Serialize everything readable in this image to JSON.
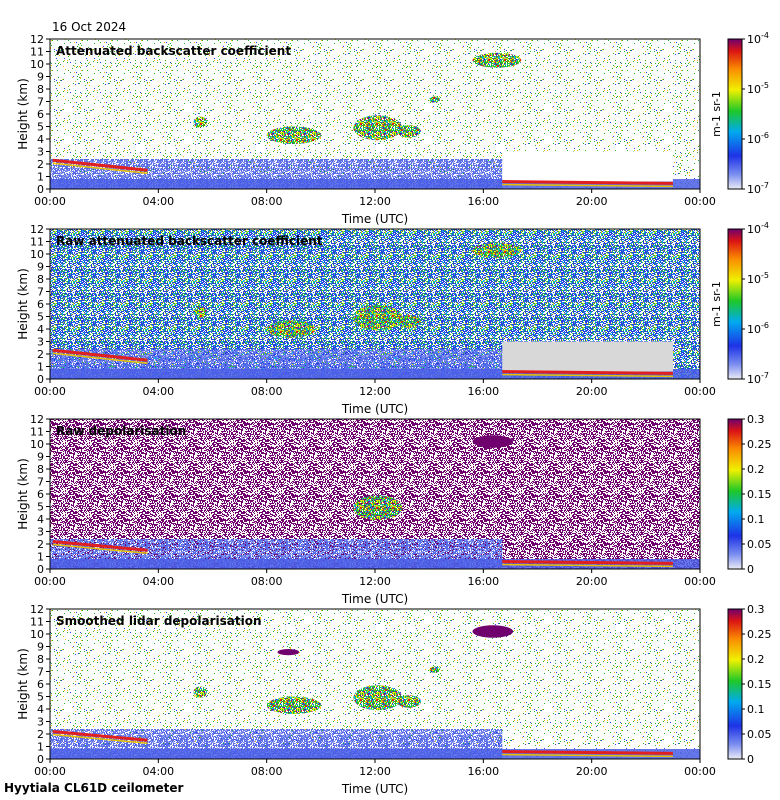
{
  "header": {
    "date": "16 Oct 2024"
  },
  "footer": {
    "site": "Hyytiala CL61D ceilometer"
  },
  "colors": {
    "purple": "#70006e",
    "white_bg": "#ffffff",
    "missing_gray": "#d8d8d8",
    "blue_low": "#2a3de8",
    "cloud_red": "#e02020",
    "aerosol_green": "#22c022"
  },
  "chart_data": [
    {
      "type": "heatmap",
      "title": "Attenuated backscatter coefficient",
      "xlabel": "Time (UTC)",
      "ylabel": "Height (km)",
      "x_ticks": [
        "00:00",
        "04:00",
        "08:00",
        "12:00",
        "16:00",
        "20:00",
        "00:00"
      ],
      "y_ticks": [
        "0",
        "1",
        "2",
        "3",
        "4",
        "5",
        "6",
        "7",
        "8",
        "9",
        "10",
        "11",
        "12"
      ],
      "xlim": [
        0,
        24
      ],
      "ylim": [
        0,
        12
      ],
      "colorbar": {
        "scale": "log",
        "ticks": [
          "10-7",
          "10-6",
          "10-5",
          "10-4"
        ],
        "exponents": [
          "-7",
          "-6",
          "-5",
          "-4"
        ],
        "unit": "m-1 sr-1"
      },
      "features": [
        {
          "kind": "missing",
          "x0": 16.7,
          "x1": 23.0,
          "y0": 0.6,
          "y1": 3.0
        },
        {
          "kind": "layer",
          "x0": 0.1,
          "x1": 3.6,
          "y_start": 2.3,
          "y_end": 1.5
        },
        {
          "kind": "layer",
          "x0": 16.7,
          "x1": 23.0,
          "y_start": 0.6,
          "y_end": 0.45
        },
        {
          "kind": "cloud",
          "x": 5.3,
          "y": 4.9,
          "w": 0.5,
          "h": 0.9
        },
        {
          "kind": "cloud",
          "x": 8.0,
          "y": 3.6,
          "w": 2.0,
          "h": 1.4
        },
        {
          "kind": "cloud",
          "x": 11.2,
          "y": 3.9,
          "w": 1.8,
          "h": 2.0
        },
        {
          "kind": "cloud",
          "x": 12.8,
          "y": 4.1,
          "w": 0.9,
          "h": 1.0
        },
        {
          "kind": "cloud",
          "x": 15.6,
          "y": 9.7,
          "w": 1.8,
          "h": 1.2
        },
        {
          "kind": "cloud",
          "x": 14.0,
          "y": 6.9,
          "w": 0.4,
          "h": 0.5
        }
      ]
    },
    {
      "type": "heatmap",
      "title": "Raw attenuated backscatter coefficient",
      "xlabel": "Time (UTC)",
      "ylabel": "Height (km)",
      "x_ticks": [
        "00:00",
        "04:00",
        "08:00",
        "12:00",
        "16:00",
        "20:00",
        "00:00"
      ],
      "y_ticks": [
        "0",
        "1",
        "2",
        "3",
        "4",
        "5",
        "6",
        "7",
        "8",
        "9",
        "10",
        "11",
        "12"
      ],
      "xlim": [
        0,
        24
      ],
      "ylim": [
        0,
        12
      ],
      "colorbar": {
        "scale": "log",
        "ticks": [
          "10-7",
          "10-6",
          "10-5",
          "10-4"
        ],
        "exponents": [
          "-7",
          "-6",
          "-5",
          "-4"
        ],
        "unit": "m-1 sr-1"
      },
      "features": [
        {
          "kind": "missing",
          "x0": 16.7,
          "x1": 23.0,
          "y0": 0.6,
          "y1": 3.0
        },
        {
          "kind": "layer",
          "x0": 0.1,
          "x1": 3.6,
          "y_start": 2.3,
          "y_end": 1.5
        },
        {
          "kind": "layer",
          "x0": 16.7,
          "x1": 23.0,
          "y_start": 0.6,
          "y_end": 0.45
        },
        {
          "kind": "cloud",
          "x": 5.3,
          "y": 4.9,
          "w": 0.5,
          "h": 0.9
        },
        {
          "kind": "cloud",
          "x": 8.0,
          "y": 3.3,
          "w": 1.8,
          "h": 1.4
        },
        {
          "kind": "cloud",
          "x": 11.2,
          "y": 3.9,
          "w": 1.8,
          "h": 2.0
        },
        {
          "kind": "cloud",
          "x": 12.8,
          "y": 4.1,
          "w": 0.9,
          "h": 1.0
        },
        {
          "kind": "cloud",
          "x": 15.6,
          "y": 9.7,
          "w": 1.8,
          "h": 1.2
        }
      ]
    },
    {
      "type": "heatmap",
      "title": "Raw depolarisation",
      "xlabel": "Time (UTC)",
      "ylabel": "Height (km)",
      "x_ticks": [
        "00:00",
        "04:00",
        "08:00",
        "12:00",
        "16:00",
        "20:00",
        "00:00"
      ],
      "y_ticks": [
        "0",
        "1",
        "2",
        "3",
        "4",
        "5",
        "6",
        "7",
        "8",
        "9",
        "10",
        "11",
        "12"
      ],
      "xlim": [
        0,
        24
      ],
      "ylim": [
        0,
        12
      ],
      "colorbar": {
        "scale": "linear",
        "ticks": [
          "0",
          "0.05",
          "0.1",
          "0.15",
          "0.2",
          "0.25",
          "0.3"
        ],
        "range": [
          0,
          0.3
        ]
      },
      "features": [
        {
          "kind": "layer",
          "x0": 0.1,
          "x1": 3.6,
          "y_start": 2.2,
          "y_end": 1.5
        },
        {
          "kind": "layer",
          "x0": 16.7,
          "x1": 23.0,
          "y_start": 0.6,
          "y_end": 0.45
        },
        {
          "kind": "cloud",
          "x": 11.2,
          "y": 3.9,
          "w": 1.8,
          "h": 2.0
        },
        {
          "kind": "cloud",
          "x": 15.6,
          "y": 9.7,
          "w": 1.5,
          "h": 1.0
        }
      ]
    },
    {
      "type": "heatmap",
      "title": "Smoothed lidar depolarisation",
      "xlabel": "Time (UTC)",
      "ylabel": "Height (km)",
      "x_ticks": [
        "00:00",
        "04:00",
        "08:00",
        "12:00",
        "16:00",
        "20:00",
        "00:00"
      ],
      "y_ticks": [
        "0",
        "1",
        "2",
        "3",
        "4",
        "5",
        "6",
        "7",
        "8",
        "9",
        "10",
        "11",
        "12"
      ],
      "xlim": [
        0,
        24
      ],
      "ylim": [
        0,
        12
      ],
      "colorbar": {
        "scale": "linear",
        "ticks": [
          "0",
          "0.05",
          "0.1",
          "0.15",
          "0.2",
          "0.25",
          "0.3"
        ],
        "range": [
          0,
          0.3
        ]
      },
      "features": [
        {
          "kind": "layer",
          "x0": 0.1,
          "x1": 3.6,
          "y_start": 2.2,
          "y_end": 1.5
        },
        {
          "kind": "layer",
          "x0": 16.7,
          "x1": 23.0,
          "y_start": 0.6,
          "y_end": 0.45
        },
        {
          "kind": "cloud",
          "x": 5.3,
          "y": 4.9,
          "w": 0.5,
          "h": 0.9
        },
        {
          "kind": "cloud",
          "x": 8.0,
          "y": 3.6,
          "w": 2.0,
          "h": 1.4
        },
        {
          "kind": "cloud",
          "x": 11.2,
          "y": 3.9,
          "w": 1.8,
          "h": 2.0
        },
        {
          "kind": "cloud",
          "x": 12.8,
          "y": 4.1,
          "w": 0.9,
          "h": 1.0
        },
        {
          "kind": "cloud",
          "x": 15.6,
          "y": 9.7,
          "w": 1.5,
          "h": 1.0
        },
        {
          "kind": "cloud",
          "x": 8.4,
          "y": 8.3,
          "w": 0.8,
          "h": 0.5
        },
        {
          "kind": "cloud",
          "x": 14.0,
          "y": 6.9,
          "w": 0.4,
          "h": 0.5
        }
      ]
    }
  ]
}
